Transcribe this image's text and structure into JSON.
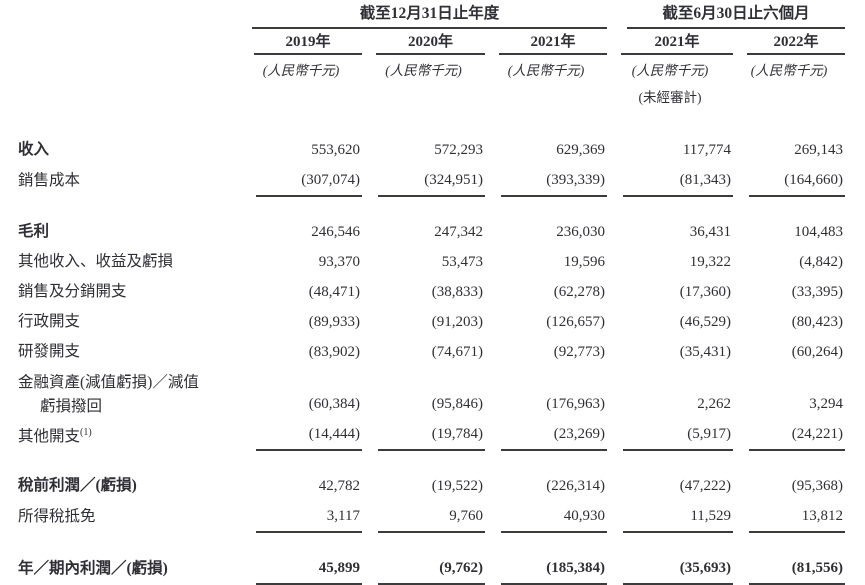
{
  "table": {
    "col_groups": [
      {
        "label": "截至12月31日止年度",
        "span": 3
      },
      {
        "label": "截至6月30日止六個月",
        "span": 2
      }
    ],
    "columns": [
      {
        "year": "2019年",
        "unit": "(人民幣千元)",
        "note": ""
      },
      {
        "year": "2020年",
        "unit": "(人民幣千元)",
        "note": ""
      },
      {
        "year": "2021年",
        "unit": "(人民幣千元)",
        "note": ""
      },
      {
        "year": "2021年",
        "unit": "(人民幣千元)",
        "note": "(未經審計)"
      },
      {
        "year": "2022年",
        "unit": "(人民幣千元)",
        "note": ""
      }
    ],
    "rows": [
      {
        "label": "收入",
        "bold": true,
        "values": [
          "553,620",
          "572,293",
          "629,369",
          "117,774",
          "269,143"
        ]
      },
      {
        "label": "銷售成本",
        "rule": "single",
        "values": [
          "(307,074)",
          "(324,951)",
          "(393,339)",
          "(81,343)",
          "(164,660)"
        ]
      },
      {
        "kind": "spacer"
      },
      {
        "label": "毛利",
        "bold": true,
        "values": [
          "246,546",
          "247,342",
          "236,030",
          "36,431",
          "104,483"
        ]
      },
      {
        "label": "其他收入、收益及虧損",
        "values": [
          "93,370",
          "53,473",
          "19,596",
          "19,322",
          "(4,842)"
        ]
      },
      {
        "label": "銷售及分銷開支",
        "values": [
          "(48,471)",
          "(38,833)",
          "(62,278)",
          "(17,360)",
          "(33,395)"
        ]
      },
      {
        "label": "行政開支",
        "values": [
          "(89,933)",
          "(91,203)",
          "(126,657)",
          "(46,529)",
          "(80,423)"
        ]
      },
      {
        "label": "研發開支",
        "values": [
          "(83,902)",
          "(74,671)",
          "(92,773)",
          "(35,431)",
          "(60,264)"
        ]
      },
      {
        "label": "金融資產(減值虧損)／減值",
        "label2": "虧損撥回",
        "values": [
          "(60,384)",
          "(95,846)",
          "(176,963)",
          "2,262",
          "3,294"
        ]
      },
      {
        "label": "其他開支",
        "sup": "(1)",
        "rule": "single",
        "values": [
          "(14,444)",
          "(19,784)",
          "(23,269)",
          "(5,917)",
          "(24,221)"
        ]
      },
      {
        "kind": "spacer"
      },
      {
        "label": "稅前利潤／(虧損)",
        "bold": true,
        "values": [
          "42,782",
          "(19,522)",
          "(226,314)",
          "(47,222)",
          "(95,368)"
        ]
      },
      {
        "label": "所得稅抵免",
        "rule": "single",
        "values": [
          "3,117",
          "9,760",
          "40,930",
          "11,529",
          "13,812"
        ]
      },
      {
        "kind": "spacer"
      },
      {
        "label": "年／期內利潤／(虧損)",
        "bold": true,
        "bold_values": true,
        "rule": "double",
        "values": [
          "45,899",
          "(9,762)",
          "(185,384)",
          "(35,693)",
          "(81,556)"
        ]
      }
    ]
  }
}
